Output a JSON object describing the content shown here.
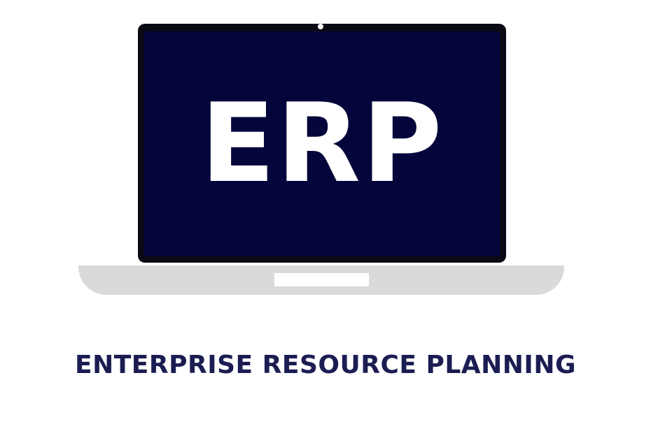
{
  "logo": {
    "screen_text": "ERP",
    "subtitle": "ENTERPRISE RESOURCE PLANNING"
  },
  "colors": {
    "screen": "#04053a",
    "bezel": "#0a0a14",
    "base": "#dadada",
    "subtitle": "#1b1d52",
    "background": "#ffffff"
  },
  "icons": {
    "laptop": "laptop-icon",
    "webcam": "webcam-icon",
    "trackpad": "trackpad-icon"
  }
}
